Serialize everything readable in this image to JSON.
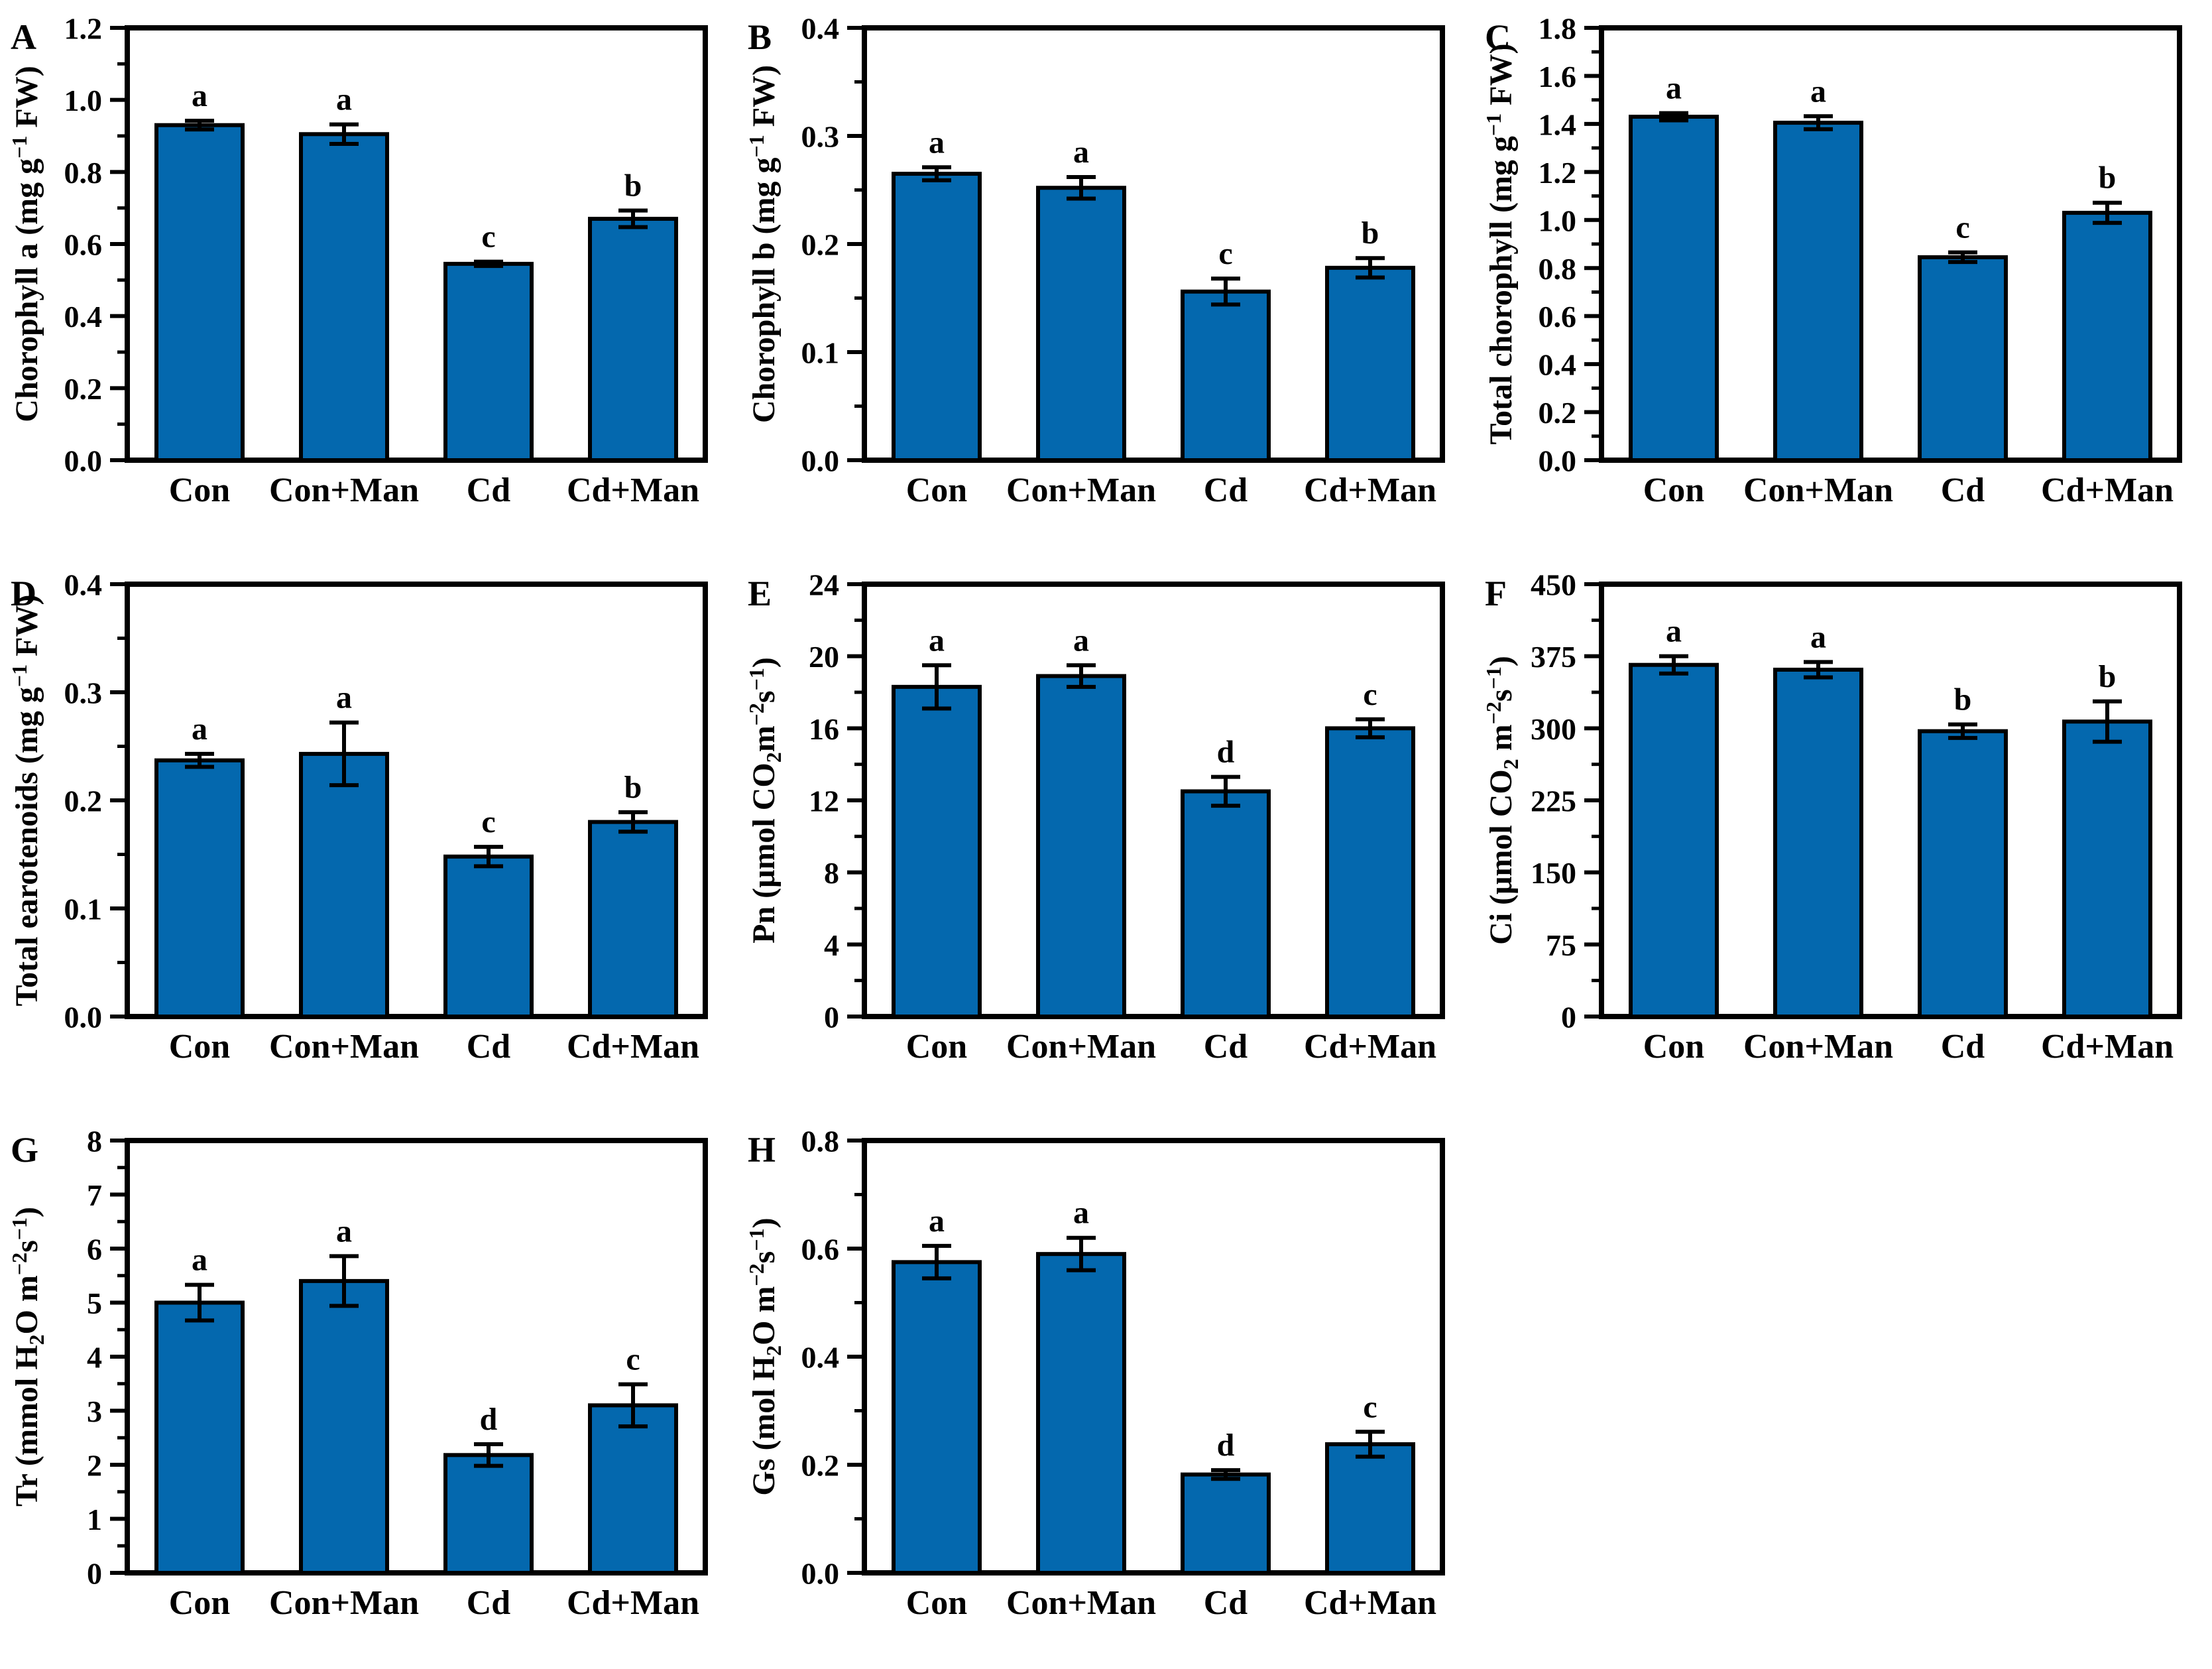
{
  "figure": {
    "background": "#ffffff",
    "bar_fill": "#0468AE",
    "bar_stroke": "#000000",
    "axis_color": "#000000",
    "text_color": "#000000",
    "categories": [
      "Con",
      "Con+Man",
      "Cd",
      "Cd+Man"
    ]
  },
  "chart_data": [
    {
      "type": "bar",
      "panel": "A",
      "ylabel": "Chorophyll a (mg g⁻¹ FW)",
      "ylabel_rich": [
        {
          "t": "Chorophyll a (mg g"
        },
        {
          "t": "−1",
          "s": "sup"
        },
        {
          "t": " FW)"
        }
      ],
      "ylim": [
        0,
        1.2
      ],
      "yticks": [
        0.0,
        0.2,
        0.4,
        0.6,
        0.8,
        1.0,
        1.2
      ],
      "ytick_labels": [
        "0.0",
        "0.2",
        "0.4",
        "0.6",
        "0.8",
        "1.0",
        "1.2"
      ],
      "minor_ticks": true,
      "categories": [
        "Con",
        "Con+Man",
        "Cd",
        "Cd+Man"
      ],
      "values": [
        0.93,
        0.905,
        0.545,
        0.67
      ],
      "errors": [
        0.012,
        0.027,
        0.006,
        0.023
      ],
      "sig_letters": [
        "a",
        "a",
        "c",
        "b"
      ],
      "legend": "none",
      "grid": false
    },
    {
      "type": "bar",
      "panel": "B",
      "ylabel": "Chorophyll b (mg g⁻¹ FW)",
      "ylabel_rich": [
        {
          "t": "Chorophyll b (mg g"
        },
        {
          "t": "−1",
          "s": "sup"
        },
        {
          "t": " FW)"
        }
      ],
      "ylim": [
        0,
        0.4
      ],
      "yticks": [
        0.0,
        0.1,
        0.2,
        0.3,
        0.4
      ],
      "ytick_labels": [
        "0.0",
        "0.1",
        "0.2",
        "0.3",
        "0.4"
      ],
      "minor_ticks": true,
      "categories": [
        "Con",
        "Con+Man",
        "Cd",
        "Cd+Man"
      ],
      "values": [
        0.265,
        0.252,
        0.156,
        0.178
      ],
      "errors": [
        0.006,
        0.01,
        0.012,
        0.009
      ],
      "sig_letters": [
        "a",
        "a",
        "c",
        "b"
      ],
      "legend": "none",
      "grid": false
    },
    {
      "type": "bar",
      "panel": "C",
      "ylabel": "Total chorophyll (mg g⁻¹ FW)",
      "ylabel_rich": [
        {
          "t": "Total chorophyll (mg g"
        },
        {
          "t": "−1",
          "s": "sup"
        },
        {
          "t": " FW)"
        }
      ],
      "ylim": [
        0,
        1.8
      ],
      "yticks": [
        0.0,
        0.2,
        0.4,
        0.6,
        0.8,
        1.0,
        1.2,
        1.4,
        1.6,
        1.8
      ],
      "ytick_labels": [
        "0.0",
        "0.2",
        "0.4",
        "0.6",
        "0.8",
        "1.0",
        "1.2",
        "1.4",
        "1.6",
        "1.8"
      ],
      "minor_ticks": true,
      "categories": [
        "Con",
        "Con+Man",
        "Cd",
        "Cd+Man"
      ],
      "values": [
        1.43,
        1.405,
        0.845,
        1.03
      ],
      "errors": [
        0.015,
        0.027,
        0.02,
        0.042
      ],
      "sig_letters": [
        "a",
        "a",
        "c",
        "b"
      ],
      "legend": "none",
      "grid": false
    },
    {
      "type": "bar",
      "panel": "D",
      "ylabel": "Total earotenoids (mg g⁻¹ FW)",
      "ylabel_rich": [
        {
          "t": "Total earotenoids (mg g"
        },
        {
          "t": "−1",
          "s": "sup"
        },
        {
          "t": " FW)"
        }
      ],
      "ylim": [
        0,
        0.4
      ],
      "yticks": [
        0.0,
        0.1,
        0.2,
        0.3,
        0.4
      ],
      "ytick_labels": [
        "0.0",
        "0.1",
        "0.2",
        "0.3",
        "0.4"
      ],
      "minor_ticks": true,
      "categories": [
        "Con",
        "Con+Man",
        "Cd",
        "Cd+Man"
      ],
      "values": [
        0.237,
        0.243,
        0.148,
        0.18
      ],
      "errors": [
        0.006,
        0.029,
        0.009,
        0.009
      ],
      "sig_letters": [
        "a",
        "a",
        "c",
        "b"
      ],
      "legend": "none",
      "grid": false
    },
    {
      "type": "bar",
      "panel": "E",
      "ylabel": "Pn (μmol CO₂m⁻²s⁻¹)",
      "ylabel_rich": [
        {
          "t": "Pn (μmol CO"
        },
        {
          "t": "2",
          "s": "sub"
        },
        {
          "t": "m"
        },
        {
          "t": "−2",
          "s": "sup"
        },
        {
          "t": "s"
        },
        {
          "t": "−1",
          "s": "sup"
        },
        {
          "t": ")"
        }
      ],
      "ylim": [
        0,
        24
      ],
      "yticks": [
        0,
        4,
        8,
        12,
        16,
        20,
        24
      ],
      "ytick_labels": [
        "0",
        "4",
        "8",
        "12",
        "16",
        "20",
        "24"
      ],
      "minor_ticks": true,
      "categories": [
        "Con",
        "Con+Man",
        "Cd",
        "Cd+Man"
      ],
      "values": [
        18.3,
        18.9,
        12.5,
        16.0
      ],
      "errors": [
        1.2,
        0.6,
        0.8,
        0.5
      ],
      "sig_letters": [
        "a",
        "a",
        "d",
        "c"
      ],
      "legend": "none",
      "grid": false
    },
    {
      "type": "bar",
      "panel": "F",
      "ylabel": "Ci (μmol CO₂ m⁻²s⁻¹)",
      "ylabel_rich": [
        {
          "t": "Ci (μmol CO"
        },
        {
          "t": "2",
          "s": "sub"
        },
        {
          "t": " m"
        },
        {
          "t": "−2",
          "s": "sup"
        },
        {
          "t": "s"
        },
        {
          "t": "−1",
          "s": "sup"
        },
        {
          "t": ")"
        }
      ],
      "ylim": [
        0,
        450
      ],
      "yticks": [
        0,
        75,
        150,
        225,
        300,
        375,
        450
      ],
      "ytick_labels": [
        "0",
        "75",
        "150",
        "225",
        "300",
        "375",
        "450"
      ],
      "minor_ticks": true,
      "categories": [
        "Con",
        "Con+Man",
        "Cd",
        "Cd+Man"
      ],
      "values": [
        366,
        361,
        297,
        307
      ],
      "errors": [
        9,
        8,
        7,
        21
      ],
      "sig_letters": [
        "a",
        "a",
        "b",
        "b"
      ],
      "legend": "none",
      "grid": false
    },
    {
      "type": "bar",
      "panel": "G",
      "ylabel": "Tr (mmol H₂O m⁻²s⁻¹)",
      "ylabel_rich": [
        {
          "t": "Tr (mmol H"
        },
        {
          "t": "2",
          "s": "sub"
        },
        {
          "t": "O m"
        },
        {
          "t": "−2",
          "s": "sup"
        },
        {
          "t": "s"
        },
        {
          "t": "−1",
          "s": "sup"
        },
        {
          "t": ")"
        }
      ],
      "ylim": [
        0,
        8
      ],
      "yticks": [
        0,
        1,
        2,
        3,
        4,
        5,
        6,
        7,
        8
      ],
      "ytick_labels": [
        "0",
        "1",
        "2",
        "3",
        "4",
        "5",
        "6",
        "7",
        "8"
      ],
      "minor_ticks": true,
      "categories": [
        "Con",
        "Con+Man",
        "Cd",
        "Cd+Man"
      ],
      "values": [
        5.0,
        5.4,
        2.18,
        3.1
      ],
      "errors": [
        0.33,
        0.46,
        0.2,
        0.39
      ],
      "sig_letters": [
        "a",
        "a",
        "d",
        "c"
      ],
      "legend": "none",
      "grid": false
    },
    {
      "type": "bar",
      "panel": "H",
      "ylabel": "Gs (mol H₂O m⁻²s⁻¹)",
      "ylabel_rich": [
        {
          "t": "Gs (mol H"
        },
        {
          "t": "2",
          "s": "sub"
        },
        {
          "t": "O m"
        },
        {
          "t": "−2",
          "s": "sup"
        },
        {
          "t": "s"
        },
        {
          "t": "−1",
          "s": "sup"
        },
        {
          "t": ")"
        }
      ],
      "ylim": [
        0,
        0.8
      ],
      "yticks": [
        0.0,
        0.2,
        0.4,
        0.6,
        0.8
      ],
      "ytick_labels": [
        "0.0",
        "0.2",
        "0.4",
        "0.6",
        "0.8"
      ],
      "minor_ticks": true,
      "categories": [
        "Con",
        "Con+Man",
        "Cd",
        "Cd+Man"
      ],
      "values": [
        0.575,
        0.59,
        0.182,
        0.238
      ],
      "errors": [
        0.03,
        0.03,
        0.008,
        0.023
      ],
      "sig_letters": [
        "a",
        "a",
        "d",
        "c"
      ],
      "legend": "none",
      "grid": false
    }
  ]
}
